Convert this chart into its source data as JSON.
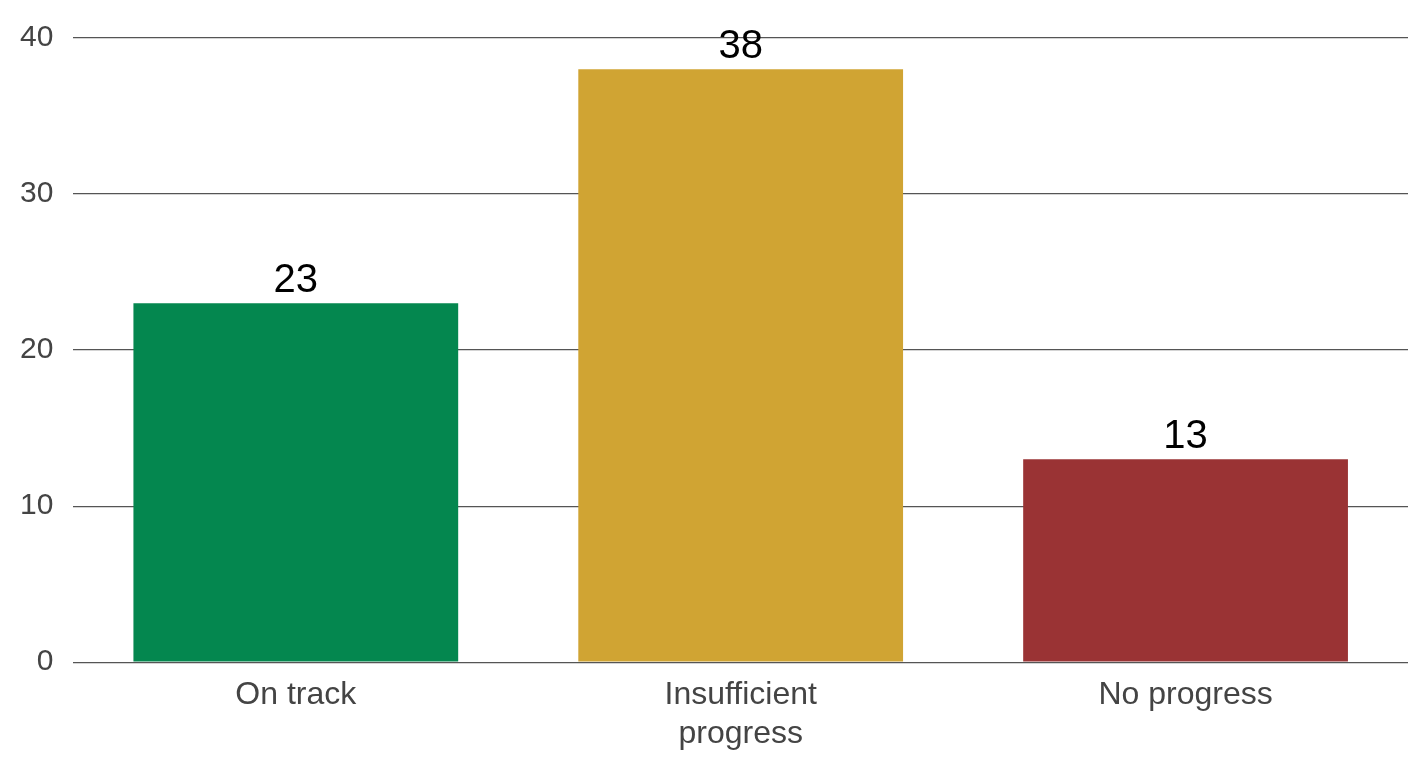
{
  "chart_data": {
    "type": "bar",
    "categories": [
      "On track",
      "Insufficient progress",
      "No progress"
    ],
    "values": [
      23,
      38,
      13
    ],
    "colors": [
      "#04874f",
      "#d0a433",
      "#9a3334"
    ],
    "ylim": [
      0,
      40
    ],
    "yticks": [
      0,
      10,
      20,
      30,
      40
    ],
    "grid": "y",
    "data_labels": true,
    "legend": false
  }
}
